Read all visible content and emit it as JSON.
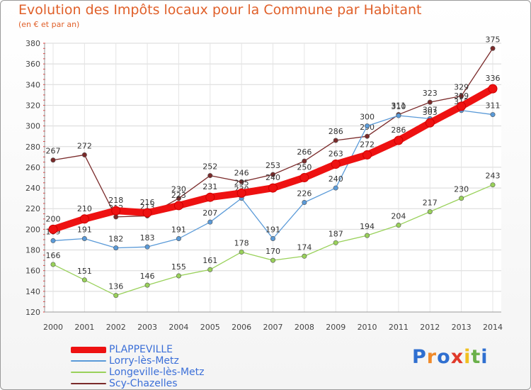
{
  "chart_data": {
    "type": "line",
    "title": "Evolution des Impôts locaux pour la Commune par Habitant",
    "subtitle": "(en € et par an)",
    "xlabel": "",
    "ylabel": "",
    "x": [
      "2000",
      "2001",
      "2002",
      "2003",
      "2004",
      "2005",
      "2006",
      "2007",
      "2008",
      "2009",
      "2010",
      "2011",
      "2012",
      "2013",
      "2014"
    ],
    "ylim": [
      120,
      380
    ],
    "yticks": [
      120,
      140,
      160,
      180,
      200,
      220,
      240,
      260,
      280,
      300,
      320,
      340,
      360,
      380
    ],
    "grid": true,
    "legend_position": "bottom-left",
    "series": [
      {
        "name": "Scy-Chazelles",
        "color": "#7a2a2a",
        "values": [
          267,
          272,
          212,
          213,
          230,
          252,
          246,
          253,
          266,
          286,
          290,
          311,
          323,
          329,
          375
        ],
        "labels": [
          "267",
          "272",
          "212",
          "213",
          "230",
          "252",
          "246",
          "253",
          "266",
          "286",
          "290",
          "311",
          "323",
          "329",
          "375"
        ]
      },
      {
        "name": "Longeville-lès-Metz",
        "color": "#99d15a",
        "values": [
          166,
          151,
          136,
          146,
          155,
          161,
          178,
          170,
          174,
          187,
          194,
          204,
          217,
          230,
          243
        ],
        "labels": [
          "166",
          "151",
          "136",
          "146",
          "155",
          "161",
          "178",
          "170",
          "174",
          "187",
          "194",
          "204",
          "217",
          "230",
          "243"
        ]
      },
      {
        "name": "Lorry-lès-Metz",
        "color": "#5a9ad8",
        "values": [
          189,
          191,
          182,
          183,
          191,
          207,
          230,
          191,
          226,
          240,
          300,
          310,
          307,
          315,
          311
        ],
        "labels": [
          "189",
          "191",
          "182",
          "183",
          "191",
          "207",
          "230",
          "191",
          "226",
          "240",
          "300",
          "310",
          "307",
          "315",
          "311"
        ]
      },
      {
        "name": "PLAPPEVILLE",
        "color": "#ee1111",
        "values": [
          200,
          210,
          218,
          216,
          223,
          231,
          235,
          240,
          250,
          263,
          272,
          286,
          303,
          319,
          336
        ],
        "labels": [
          "200",
          "210",
          "218",
          "216",
          "223",
          "231",
          "235",
          "240",
          "250",
          "263",
          "272",
          "286",
          "303",
          "319",
          "336"
        ]
      }
    ]
  },
  "legend": {
    "items": [
      {
        "label": "PLAPPEVILLE",
        "color": "#ee1111"
      },
      {
        "label": "Lorry-lès-Metz",
        "color": "#5a9ad8"
      },
      {
        "label": "Longeville-lès-Metz",
        "color": "#99d15a"
      },
      {
        "label": "Scy-Chazelles",
        "color": "#7a2a2a"
      }
    ]
  },
  "brand": {
    "letters": [
      "P",
      "r",
      "o",
      "x",
      "i",
      "t",
      "i"
    ],
    "colors": [
      "#2f6fd0",
      "#f08a2a",
      "#2f6fd0",
      "#e03a2a",
      "#f0c020",
      "#6ab04a",
      "#2f6fd0"
    ]
  }
}
